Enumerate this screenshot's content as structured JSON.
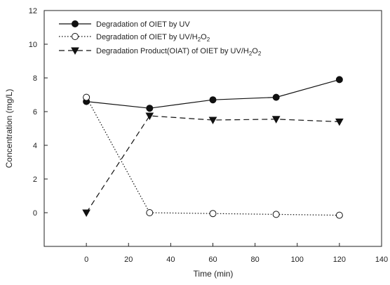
{
  "chart_data": {
    "type": "line",
    "xlabel": "Time (min)",
    "ylabel": "Concentration (mg/L)",
    "xlim": [
      -20,
      140
    ],
    "ylim": [
      -2,
      12
    ],
    "xticks": [
      0,
      20,
      40,
      60,
      80,
      100,
      120,
      140
    ],
    "yticks": [
      0,
      2,
      4,
      6,
      8,
      10,
      12
    ],
    "legend_position": "top-left",
    "grid": false,
    "x": [
      0,
      30,
      60,
      90,
      120
    ],
    "series": [
      {
        "name": "Degradation of OIET by UV",
        "legend": {
          "main": "Degradation of OIET by UV",
          "subs": []
        },
        "values": [
          6.6,
          6.2,
          6.7,
          6.85,
          7.9
        ],
        "marker": "filled-circle",
        "line": "solid",
        "color": "#111111"
      },
      {
        "name": "Degradation of OIET by UV/H2O2",
        "legend": {
          "main": "Degradation of OIET by UV/H",
          "subs": [
            "2",
            "O",
            "2"
          ]
        },
        "values": [
          6.85,
          0.0,
          -0.05,
          -0.1,
          -0.15
        ],
        "marker": "open-circle",
        "line": "dotted",
        "color": "#111111"
      },
      {
        "name": "Degradation Product(OIAT) of OIET by UV/H2O2",
        "legend": {
          "main": "Degradation Product(OIAT) of OIET by UV/H",
          "subs": [
            "2",
            "O",
            "2"
          ]
        },
        "values": [
          0.0,
          5.75,
          5.5,
          5.55,
          5.4
        ],
        "marker": "filled-triangle-down",
        "line": "dashed",
        "color": "#111111"
      }
    ]
  }
}
